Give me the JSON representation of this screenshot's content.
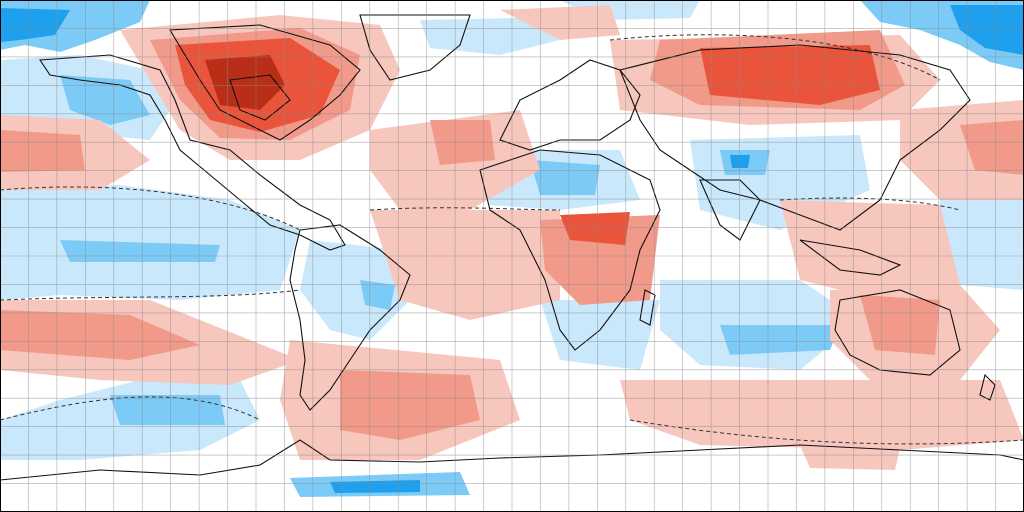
{
  "map": {
    "projection": "equirectangular",
    "grid": {
      "shown": true,
      "lon_step_deg": 10,
      "lat_step_deg": 10
    },
    "background": "#ffffff",
    "legend": "none",
    "colors": {
      "blue_strong": "#1fa0ee",
      "blue_mid": "#7ccaf6",
      "blue_light": "#c9e8fb",
      "red_light": "#f7c6bd",
      "red_mid": "#f19a8a",
      "red_strong": "#e9543a",
      "red_deep": "#b82e17",
      "coastline": "#111111",
      "gridline": "#8a8a8a",
      "frame": "#000000"
    }
  }
}
